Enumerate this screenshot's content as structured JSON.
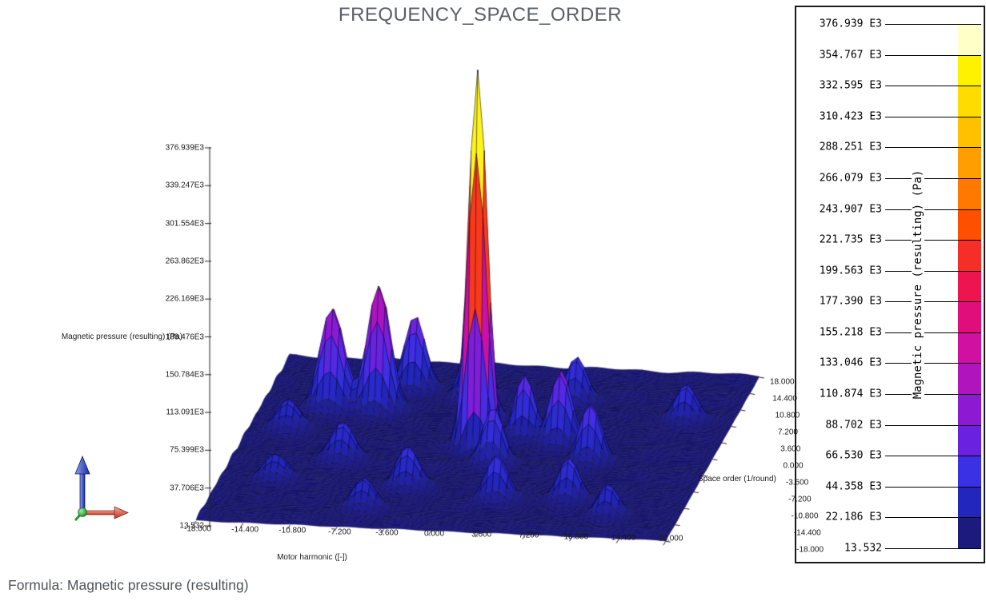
{
  "title": "FREQUENCY_SPACE_ORDER",
  "formula": "Formula: Magnetic pressure (resulting)",
  "axes": {
    "motor": {
      "title": "Motor harmonic ([-])",
      "ticks": [
        "-18.000",
        "-14.400",
        "-10.800",
        "-7.200",
        "-3.600",
        "0.000",
        "3.600",
        "7.200",
        "10.800",
        "14.400",
        "18.000"
      ]
    },
    "space": {
      "title": "Space order (1/round)",
      "ticks": [
        "18.000",
        "14.400",
        "10.800",
        "7.200",
        "3.600",
        "0.000",
        "-3.600",
        "-7.200",
        "-10.800",
        "-14.400",
        "-18.000"
      ]
    },
    "pressure": {
      "title": "Magnetic pressure (resulting) (Pa)",
      "ticks": [
        "376.939E3",
        "339.247E3",
        "301.554E3",
        "263.862E3",
        "226.169E3",
        "188.476E3",
        "150.784E3",
        "113.091E3",
        "75.399E3",
        "37.706E3",
        "13.532"
      ]
    }
  },
  "legend": {
    "axis_label": "Magnetic pressure (resulting) (Pa)",
    "labels": [
      "376.939 E3",
      "354.767 E3",
      "332.595 E3",
      "310.423 E3",
      "288.251 E3",
      "266.079 E3",
      "243.907 E3",
      "221.735 E3",
      "199.563 E3",
      "177.390 E3",
      "155.218 E3",
      "133.046 E3",
      "110.874 E3",
      "88.702 E3",
      "66.530 E3",
      "44.358 E3",
      "22.186 E3",
      "13.532"
    ]
  },
  "triad": {
    "x_arrow_color": "#c93a22",
    "z_arrow_color": "#2838b8",
    "origin_color": "#1e9e2e"
  },
  "chart_data": {
    "type": "surface",
    "title": "FREQUENCY_SPACE_ORDER",
    "xlabel": "Motor harmonic ([-])",
    "x_range": [
      -18,
      18
    ],
    "x_tick_step": 3.6,
    "ylabel": "Space order (1/round)",
    "y_range": [
      -18,
      18
    ],
    "y_tick_step": 3.6,
    "zlabel": "Magnetic pressure (resulting) (Pa)",
    "z_range": [
      13.532,
      376939
    ],
    "base_level_pa": 13.532,
    "legend_band_step_pa": 22172.2,
    "peaks": [
      {
        "motor": 0.0,
        "space": 0.0,
        "pressure": 376939,
        "width": 0.72
      },
      {
        "motor": -12.6,
        "space": 7.2,
        "pressure": 103000,
        "width": 0.9
      },
      {
        "motor": -9.0,
        "space": 7.2,
        "pressure": 128000,
        "width": 0.85
      },
      {
        "motor": -7.2,
        "space": 12.0,
        "pressure": 74000,
        "width": 0.8
      },
      {
        "motor": -2.4,
        "space": 10.8,
        "pressure": 88000,
        "width": 0.8
      },
      {
        "motor": -0.6,
        "space": 6.0,
        "pressure": 52000,
        "width": 0.75
      },
      {
        "motor": 5.4,
        "space": 10.8,
        "pressure": 46000,
        "width": 0.8
      },
      {
        "motor": 14.4,
        "space": 7.8,
        "pressure": 36000,
        "width": 0.8
      },
      {
        "motor": -15.0,
        "space": 2.4,
        "pressure": 30000,
        "width": 0.9
      },
      {
        "motor": 3.0,
        "space": 3.0,
        "pressure": 62000,
        "width": 0.75
      },
      {
        "motor": 6.0,
        "space": 1.8,
        "pressure": 74000,
        "width": 0.8
      },
      {
        "motor": 9.0,
        "space": -1.8,
        "pressure": 60000,
        "width": 0.8
      },
      {
        "motor": 1.8,
        "space": -3.0,
        "pressure": 55000,
        "width": 0.8
      },
      {
        "motor": -9.6,
        "space": -3.6,
        "pressure": 35000,
        "width": 0.9
      },
      {
        "motor": -3.6,
        "space": -9.0,
        "pressure": 40000,
        "width": 0.85
      },
      {
        "motor": 3.6,
        "space": -10.8,
        "pressure": 46000,
        "width": 0.8
      },
      {
        "motor": 9.0,
        "space": -10.2,
        "pressure": 42000,
        "width": 0.8
      },
      {
        "motor": 12.6,
        "space": -13.2,
        "pressure": 30000,
        "width": 0.8
      },
      {
        "motor": -13.8,
        "space": -8.4,
        "pressure": 24000,
        "width": 0.9
      },
      {
        "motor": -6.0,
        "space": -13.8,
        "pressure": 30000,
        "width": 0.85
      }
    ],
    "colormap_bottom_to_top": [
      "#1d1a7e",
      "#2326bc",
      "#3a30e4",
      "#6a22e0",
      "#8d1ad2",
      "#b014bc",
      "#cf10a0",
      "#e00e7a",
      "#ee1450",
      "#f62e28",
      "#ff5000",
      "#ff7800",
      "#ff9e00",
      "#ffc000",
      "#ffdc00",
      "#fff200",
      "#ffffc8"
    ]
  }
}
